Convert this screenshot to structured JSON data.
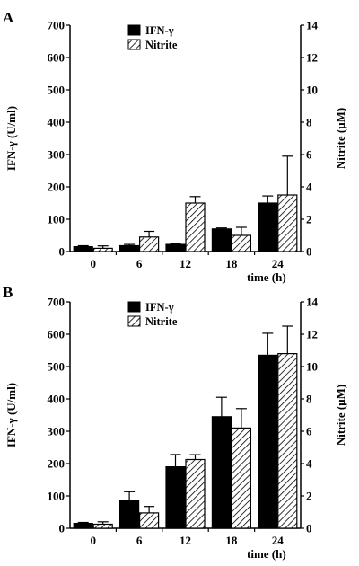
{
  "chart_data": [
    {
      "type": "bar",
      "panel_label": "A",
      "categories": [
        "0",
        "6",
        "12",
        "18",
        "24"
      ],
      "xlabel": "time (h)",
      "ylabel_left": "IFN-γ (U/ml)",
      "ylabel_right": "Nitrite (μM)",
      "ylim_left": [
        0,
        700
      ],
      "ylim_right": [
        0,
        14
      ],
      "yticks_left": [
        "0",
        "100",
        "200",
        "300",
        "400",
        "500",
        "600",
        "700"
      ],
      "yticks_right": [
        "0",
        "2",
        "4",
        "6",
        "8",
        "10",
        "12",
        "14"
      ],
      "legend_position": "top-left",
      "grid": false,
      "series": [
        {
          "name": "IFN-γ",
          "axis": "left",
          "fill": "solid",
          "color": "#000000",
          "values": [
            15,
            18,
            22,
            70,
            150
          ],
          "errors": [
            3,
            4,
            3,
            3,
            22
          ]
        },
        {
          "name": "Nitrite",
          "axis": "right",
          "fill": "hatched",
          "color": "#000000",
          "values": [
            0.2,
            0.9,
            3.0,
            1.0,
            3.5
          ],
          "errors": [
            0.15,
            0.35,
            0.4,
            0.5,
            2.4
          ]
        }
      ]
    },
    {
      "type": "bar",
      "panel_label": "B",
      "categories": [
        "0",
        "6",
        "12",
        "18",
        "24"
      ],
      "xlabel": "time (h)",
      "ylabel_left": "IFN-γ (U/ml)",
      "ylabel_right": "Nitrite (μM)",
      "ylim_left": [
        0,
        700
      ],
      "ylim_right": [
        0,
        14
      ],
      "yticks_left": [
        "0",
        "100",
        "200",
        "300",
        "400",
        "500",
        "600",
        "700"
      ],
      "yticks_right": [
        "0",
        "2",
        "4",
        "6",
        "8",
        "10",
        "12",
        "14"
      ],
      "legend_position": "top-left",
      "grid": false,
      "series": [
        {
          "name": "IFN-γ",
          "axis": "left",
          "fill": "solid",
          "color": "#000000",
          "values": [
            15,
            85,
            190,
            345,
            535
          ],
          "errors": [
            3,
            28,
            38,
            60,
            68
          ]
        },
        {
          "name": "Nitrite",
          "axis": "right",
          "fill": "hatched",
          "color": "#000000",
          "values": [
            0.25,
            0.95,
            4.25,
            6.2,
            10.8
          ],
          "errors": [
            0.15,
            0.4,
            0.3,
            1.2,
            1.7
          ]
        }
      ]
    }
  ]
}
